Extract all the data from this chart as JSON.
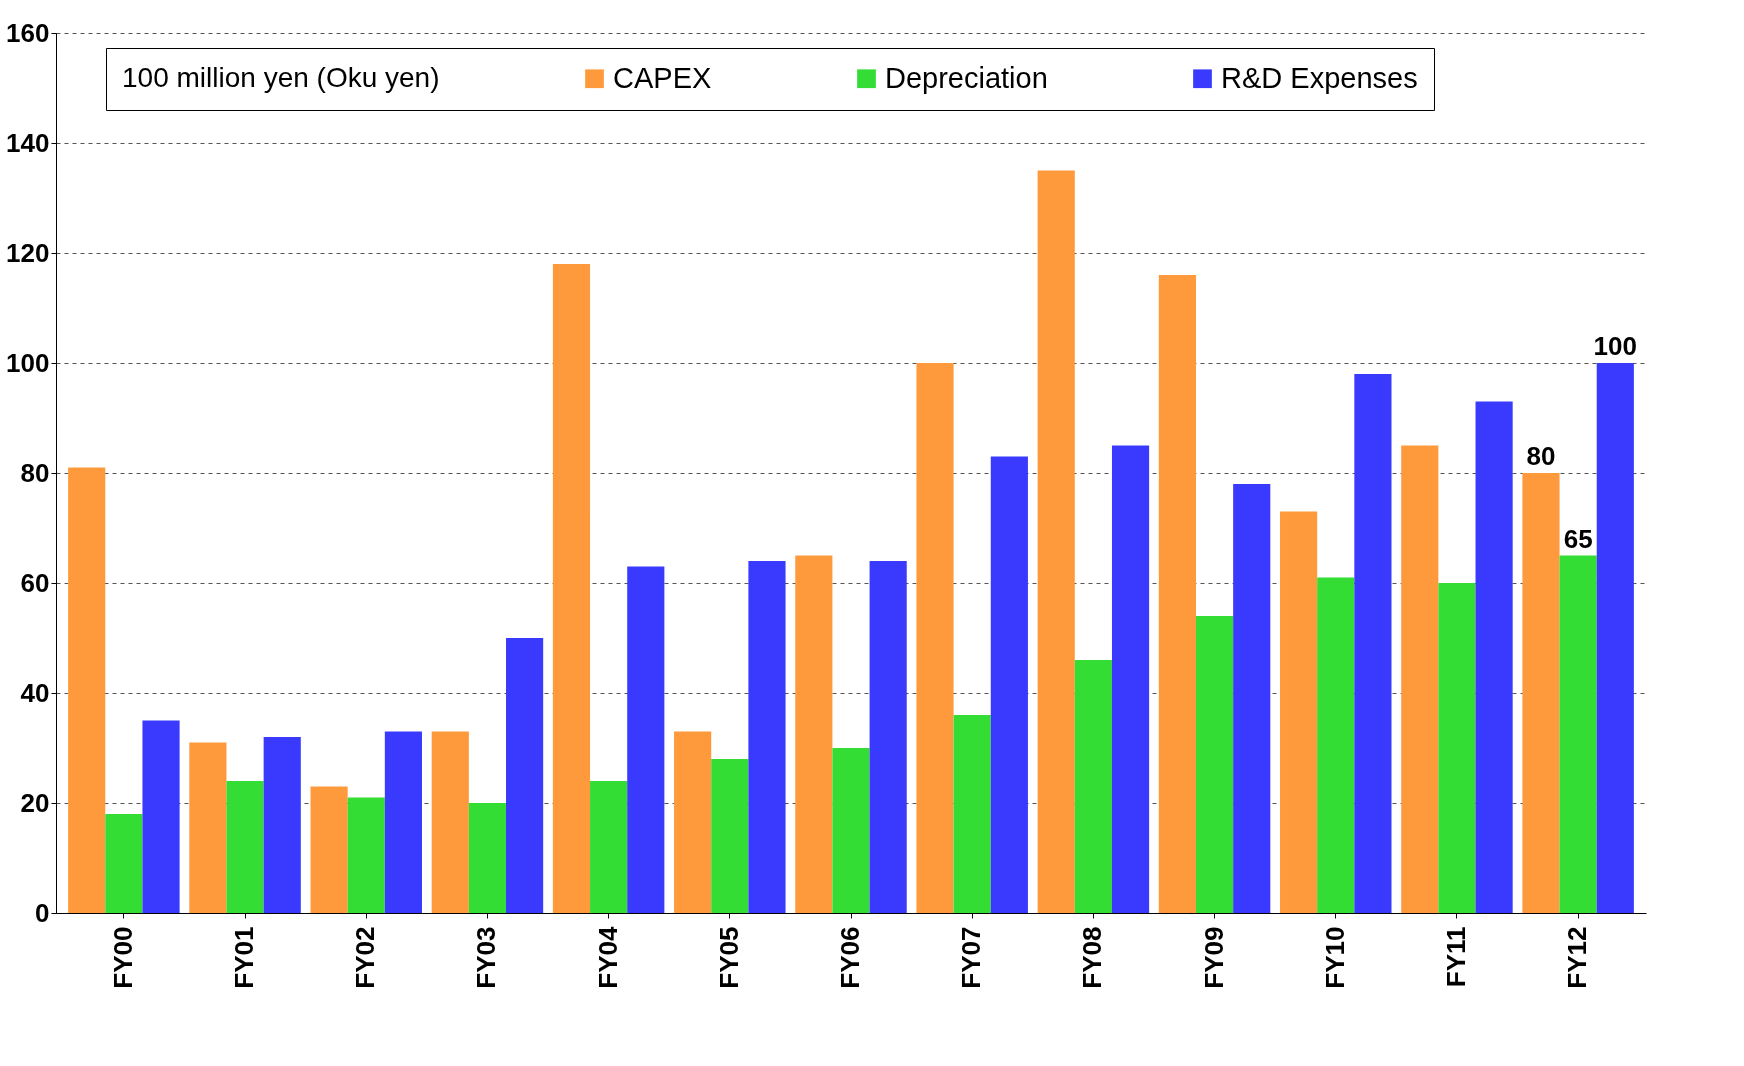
{
  "chart_data": {
    "type": "bar",
    "legend_title": "100 million yen\n(Oku yen)",
    "categories": [
      "FY00",
      "FY01",
      "FY02",
      "FY03",
      "FY04",
      "FY05",
      "FY06",
      "FY07",
      "FY08",
      "FY09",
      "FY10",
      "FY11",
      "FY12"
    ],
    "series": [
      {
        "name": "CAPEX",
        "color": "#ff9a3c",
        "values": [
          81,
          31,
          23,
          33,
          118,
          33,
          65,
          100,
          135,
          116,
          73,
          85,
          80
        ],
        "value_labels": [
          null,
          null,
          null,
          null,
          null,
          null,
          null,
          null,
          null,
          null,
          null,
          null,
          "80"
        ]
      },
      {
        "name": "Depreciation",
        "color": "#33dd33",
        "values": [
          18,
          24,
          21,
          20,
          24,
          28,
          30,
          36,
          46,
          54,
          61,
          60,
          65
        ],
        "value_labels": [
          null,
          null,
          null,
          null,
          null,
          null,
          null,
          null,
          null,
          null,
          null,
          null,
          "65"
        ]
      },
      {
        "name": "R&D Expenses",
        "color": "#3a3aff",
        "values": [
          35,
          32,
          33,
          50,
          63,
          64,
          64,
          83,
          85,
          78,
          98,
          93,
          100
        ],
        "value_labels": [
          null,
          null,
          null,
          null,
          null,
          null,
          null,
          null,
          null,
          null,
          null,
          null,
          "100"
        ]
      }
    ],
    "ylim": [
      0,
      160
    ],
    "yticks": [
      0,
      20,
      40,
      60,
      80,
      100,
      120,
      140,
      160
    ],
    "grid": "y",
    "legend": "top"
  }
}
